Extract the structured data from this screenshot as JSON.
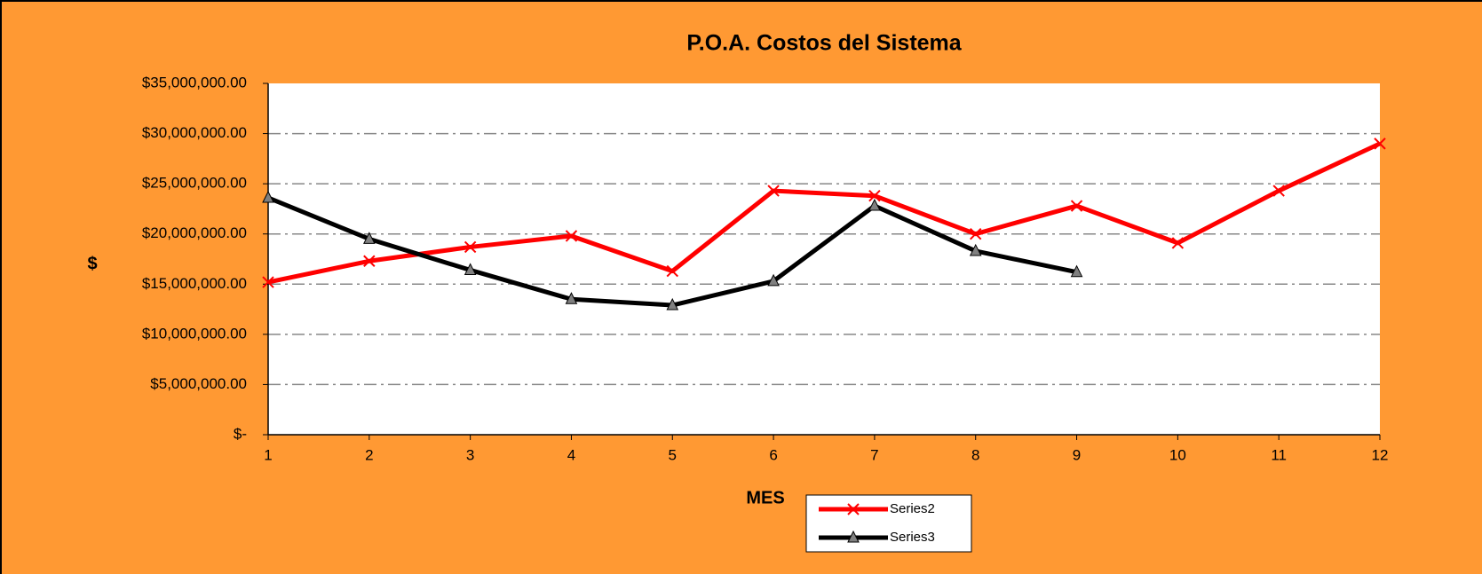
{
  "chart_data": {
    "type": "line",
    "title": "P.O.A.  Costos del Sistema",
    "x_label": "MES",
    "y_label": "$",
    "x": [
      1,
      2,
      3,
      4,
      5,
      6,
      7,
      8,
      9,
      10,
      11,
      12
    ],
    "series": [
      {
        "name": "Series2",
        "color": "#ff0000",
        "marker": "x",
        "values": [
          15200000,
          17300000,
          18700000,
          19800000,
          16300000,
          24300000,
          23800000,
          20000000,
          22800000,
          19100000,
          24300000,
          29000000
        ]
      },
      {
        "name": "Series3",
        "color": "#000000",
        "marker": "triangle",
        "values": [
          23600000,
          19500000,
          16400000,
          13500000,
          12900000,
          15300000,
          22800000,
          18300000,
          16200000,
          null,
          null,
          null
        ]
      }
    ],
    "xlim": [
      1,
      12
    ],
    "xticks": [
      1,
      2,
      3,
      4,
      5,
      6,
      7,
      8,
      9,
      10,
      11,
      12
    ],
    "ylim": [
      0,
      35000000
    ],
    "yticks": [
      {
        "value": 0,
        "label": "$-"
      },
      {
        "value": 5000000,
        "label": "$5,000,000.00"
      },
      {
        "value": 10000000,
        "label": "$10,000,000.00"
      },
      {
        "value": 15000000,
        "label": "$15,000,000.00"
      },
      {
        "value": 20000000,
        "label": "$20,000,000.00"
      },
      {
        "value": 25000000,
        "label": "$25,000,000.00"
      },
      {
        "value": 30000000,
        "label": "$30,000,000.00"
      },
      {
        "value": 35000000,
        "label": "$35,000,000.00"
      }
    ],
    "grid": true,
    "legend": "bottom"
  }
}
